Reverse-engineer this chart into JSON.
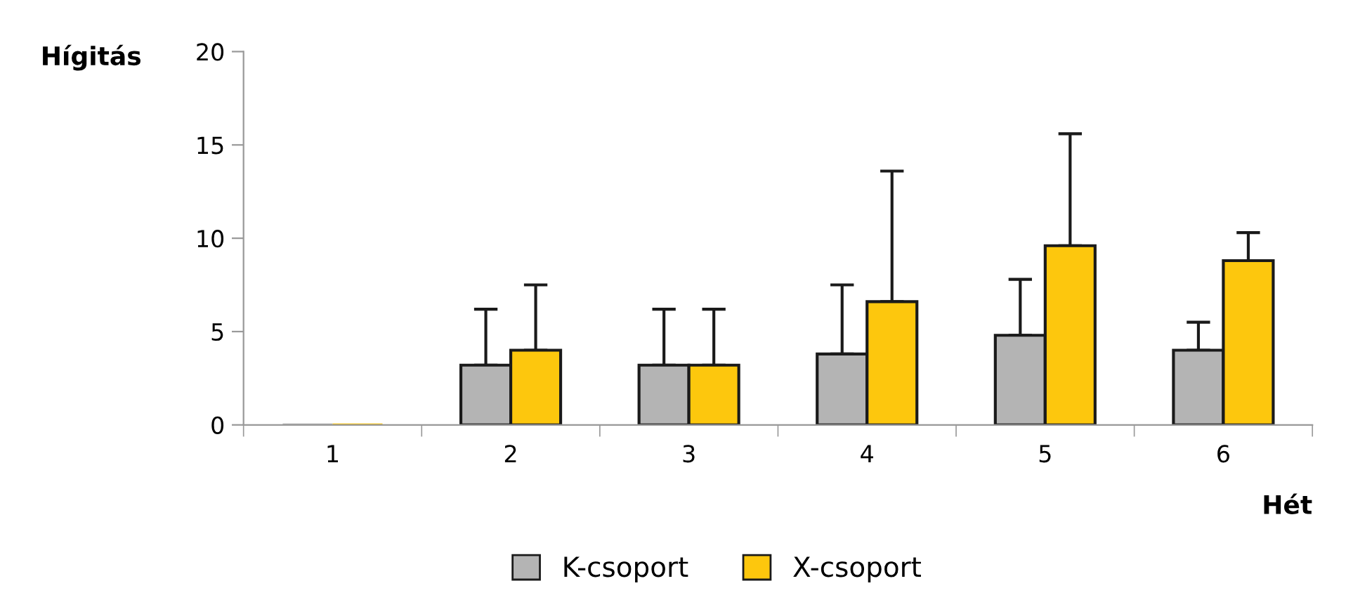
{
  "chart_data": {
    "type": "bar",
    "ylabel": "Hígitás",
    "xlabel": "Hét",
    "categories": [
      "1",
      "2",
      "3",
      "4",
      "5",
      "6"
    ],
    "series": [
      {
        "name": "K-csoport",
        "color": "#b4b4b4",
        "values": [
          0,
          3.2,
          3.2,
          3.8,
          4.8,
          4.0
        ],
        "errors": [
          null,
          [
            3.2,
            6.2
          ],
          [
            3.2,
            6.2
          ],
          [
            3.8,
            7.5
          ],
          [
            4.8,
            7.8
          ],
          [
            4.0,
            5.5
          ]
        ]
      },
      {
        "name": "X-csoport",
        "color": "#fdc70d",
        "values": [
          0,
          4.0,
          3.2,
          6.6,
          9.6,
          8.8
        ],
        "errors": [
          null,
          [
            4.0,
            7.5
          ],
          [
            3.2,
            6.2
          ],
          [
            6.6,
            13.6
          ],
          [
            9.6,
            15.6
          ],
          [
            8.8,
            10.3
          ]
        ]
      }
    ],
    "ylim": [
      0,
      20
    ],
    "yticks": [
      0,
      5,
      10,
      15,
      20
    ],
    "grid": false,
    "legend": "bottom"
  }
}
